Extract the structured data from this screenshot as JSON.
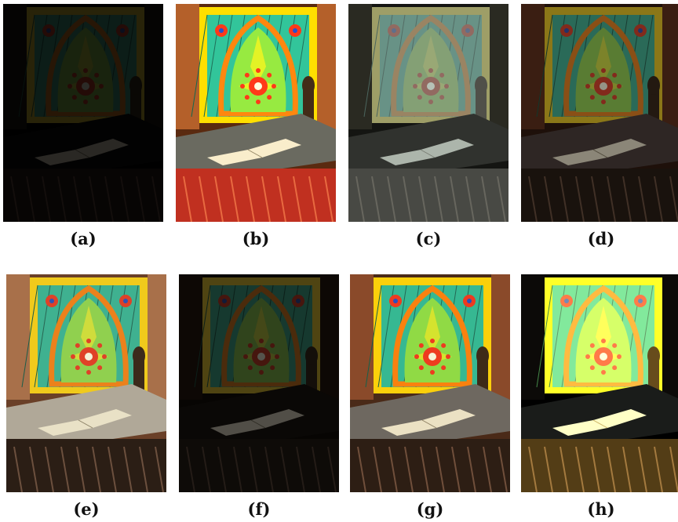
{
  "figure": {
    "panels": [
      {
        "label": "(a)",
        "tone": "dark"
      },
      {
        "label": "(b)",
        "tone": "saturated"
      },
      {
        "label": "(c)",
        "tone": "natural"
      },
      {
        "label": "(d)",
        "tone": "dim"
      },
      {
        "label": "(e)",
        "tone": "washed"
      },
      {
        "label": "(f)",
        "tone": "very-dim"
      },
      {
        "label": "(g)",
        "tone": "bright"
      },
      {
        "label": "(h)",
        "tone": "high-contrast"
      }
    ]
  }
}
